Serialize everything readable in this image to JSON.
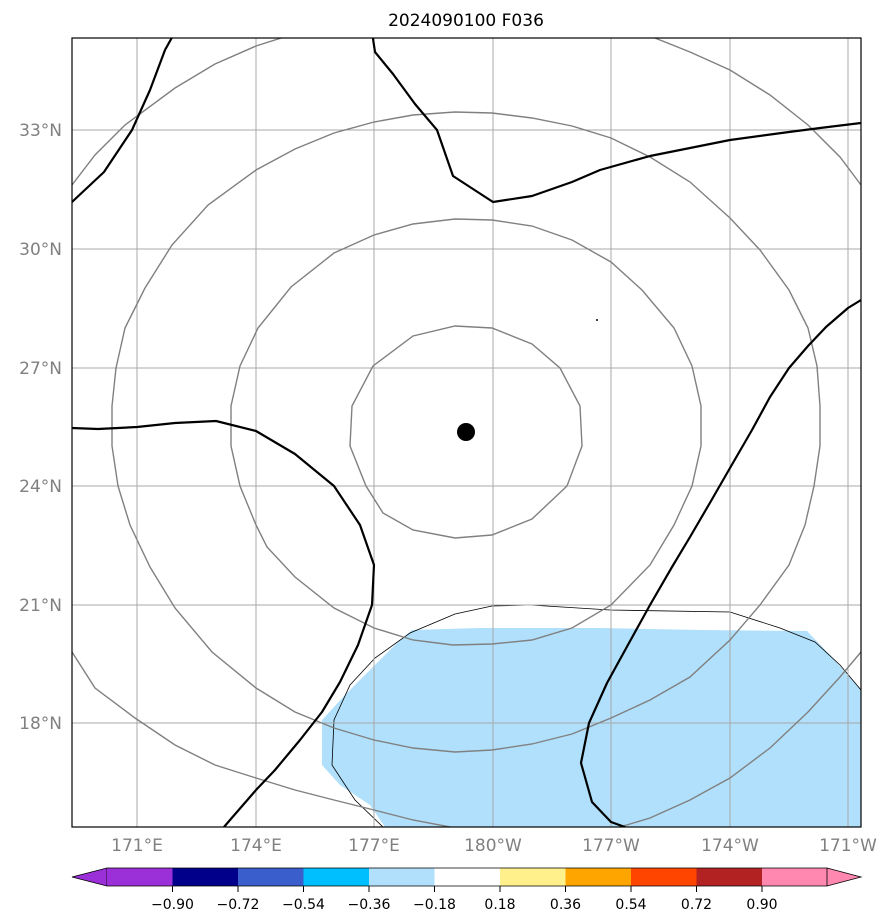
{
  "title": "2024090100 F036",
  "map": {
    "lon_labels": [
      "171°E",
      "174°E",
      "177°E",
      "180°W",
      "177°W",
      "174°W",
      "171°W"
    ],
    "lat_labels": [
      "33°N",
      "30°N",
      "27°N",
      "24°N",
      "21°N",
      "18°N"
    ],
    "storm_center": {
      "lon": 179.4,
      "lat": 25.3
    },
    "shading_color": "#b0e0fb",
    "gridline_color": "#a8a8a8",
    "contour_color": "#808080",
    "bold_line_color": "#000000"
  },
  "colorbar": {
    "extend": "both",
    "tick_labels": [
      "−0.90",
      "−0.72",
      "−0.54",
      "−0.36",
      "−0.18",
      "0.18",
      "0.36",
      "0.54",
      "0.72",
      "0.90"
    ],
    "colors": [
      "#9b30d9",
      "#00008b",
      "#3a5fcd",
      "#00bfff",
      "#b0e0fb",
      "#ffffff",
      "#fff08c",
      "#ffa500",
      "#ff4500",
      "#b22222",
      "#ff88b0"
    ]
  }
}
